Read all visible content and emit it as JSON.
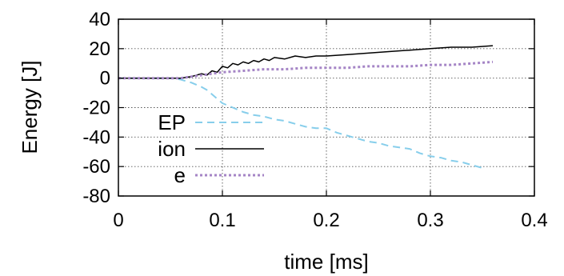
{
  "chart_data": {
    "type": "line",
    "xlabel": "time [ms]",
    "ylabel": "Energy [J]",
    "xlim": [
      0,
      0.4
    ],
    "ylim": [
      -80,
      40
    ],
    "x_ticks": [
      0,
      0.1,
      0.2,
      0.3,
      0.4
    ],
    "x_tick_labels": [
      "0",
      "0.1",
      "0.2",
      "0.3",
      "0.4"
    ],
    "y_ticks": [
      -80,
      -60,
      -40,
      -20,
      0,
      20,
      40
    ],
    "y_tick_labels": [
      "-80",
      "-60",
      "-40",
      "-20",
      "0",
      "20",
      "40"
    ],
    "grid": true,
    "legend_position": "left",
    "series": [
      {
        "name": "EP",
        "color": "#87CEEB",
        "style": "dashed",
        "x": [
          0,
          0.05,
          0.06,
          0.07,
          0.08,
          0.085,
          0.09,
          0.095,
          0.1,
          0.11,
          0.12,
          0.13,
          0.14,
          0.15,
          0.16,
          0.17,
          0.18,
          0.19,
          0.2,
          0.21,
          0.22,
          0.23,
          0.24,
          0.25,
          0.26,
          0.27,
          0.28,
          0.29,
          0.3,
          0.31,
          0.32,
          0.33,
          0.34,
          0.35
        ],
        "y": [
          0,
          0,
          -1,
          -3,
          -6,
          -8,
          -11,
          -14,
          -17,
          -20,
          -23,
          -25,
          -26,
          -28,
          -29,
          -31,
          -33,
          -34,
          -34,
          -37,
          -39,
          -41,
          -43,
          -44,
          -46,
          -47,
          -48,
          -51,
          -53,
          -54,
          -56,
          -57,
          -59,
          -61
        ]
      },
      {
        "name": "ion",
        "color": "#000000",
        "style": "solid",
        "x": [
          0,
          0.06,
          0.07,
          0.08,
          0.085,
          0.09,
          0.095,
          0.1,
          0.105,
          0.11,
          0.115,
          0.12,
          0.125,
          0.13,
          0.135,
          0.14,
          0.145,
          0.15,
          0.16,
          0.17,
          0.18,
          0.19,
          0.2,
          0.22,
          0.24,
          0.26,
          0.28,
          0.3,
          0.32,
          0.34,
          0.36
        ],
        "y": [
          0,
          0,
          1,
          3,
          2,
          5,
          4,
          8,
          7,
          10,
          9,
          11,
          10,
          12,
          11,
          13,
          12,
          14,
          13,
          15,
          14,
          15,
          15,
          16,
          17,
          18,
          19,
          20,
          21,
          21,
          22
        ]
      },
      {
        "name": "e",
        "color": "#A585C6",
        "style": "dotted",
        "x": [
          0,
          0.06,
          0.07,
          0.08,
          0.09,
          0.1,
          0.12,
          0.14,
          0.16,
          0.18,
          0.2,
          0.22,
          0.24,
          0.26,
          0.28,
          0.3,
          0.32,
          0.34,
          0.36
        ],
        "y": [
          0,
          0,
          1,
          2,
          3,
          4,
          5,
          6,
          6,
          7,
          7,
          7,
          8,
          8,
          8,
          9,
          9,
          10,
          11
        ]
      }
    ]
  }
}
